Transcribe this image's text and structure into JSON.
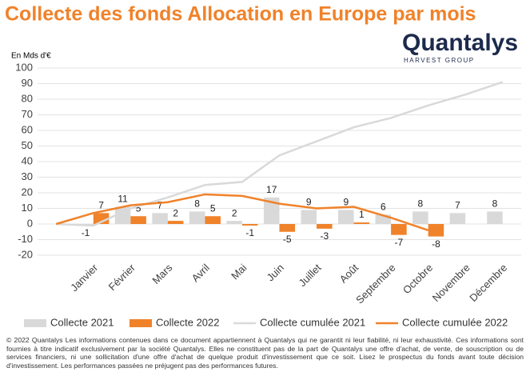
{
  "chart_data": {
    "type": "bar_line",
    "title": "Collecte des fonds Allocation en Europe par mois",
    "brand": "Quantalys",
    "brand_sub": "HARVEST GROUP",
    "unit_label": "En Mds d'€",
    "categories": [
      null,
      "Janvier",
      "Février",
      "Mars",
      "Avril",
      "Mai",
      "Juin",
      "Juillet",
      "Août",
      "Septembre",
      "Octobre",
      "Novembre",
      "Décembre"
    ],
    "ylim": [
      -20,
      100
    ],
    "yticks": [
      -20,
      -10,
      0,
      10,
      20,
      30,
      40,
      50,
      60,
      70,
      80,
      90,
      100
    ],
    "grid": true,
    "series": [
      {
        "name": "Collecte 2021",
        "kind": "bar",
        "color": "#d9d9d9",
        "values": [
          null,
          -1,
          11,
          7,
          8,
          2,
          17,
          9,
          9,
          6,
          8,
          7,
          8
        ]
      },
      {
        "name": "Collecte 2022",
        "kind": "bar",
        "color": "#f0822a",
        "values": [
          null,
          7,
          5,
          2,
          5,
          -1,
          -5,
          -3,
          1,
          -7,
          -8,
          null,
          null
        ]
      },
      {
        "name": "Collecte cumulée 2021",
        "kind": "line",
        "color": "#d9d9d9",
        "values": [
          0,
          -1,
          10,
          17,
          25,
          27,
          44,
          53,
          62,
          68,
          76,
          83,
          91
        ]
      },
      {
        "name": "Collecte cumulée 2022",
        "kind": "line",
        "color": "#f0822a",
        "values": [
          0,
          7,
          12,
          14,
          19,
          18,
          13,
          10,
          11,
          4,
          -4,
          null,
          null
        ]
      }
    ],
    "footer": "© 2022 Quantalys Les informations contenues dans ce document appartiennent à Quantalys qui ne garantit ni leur fiabilité, ni leur exhaustivité. Ces informations sont fournies à titre indicatif exclusivement par la société Quantalys. Elles ne constituent pas de la part de Quantalys une offre d'achat, de vente, de souscription ou de services financiers, ni une sollicitation d'une offre d'achat de quelque produit d'investissement que ce soit. Lisez le prospectus du fonds avant toute décision d'investissement. Les performances passées ne préjugent pas des performances futures."
  }
}
